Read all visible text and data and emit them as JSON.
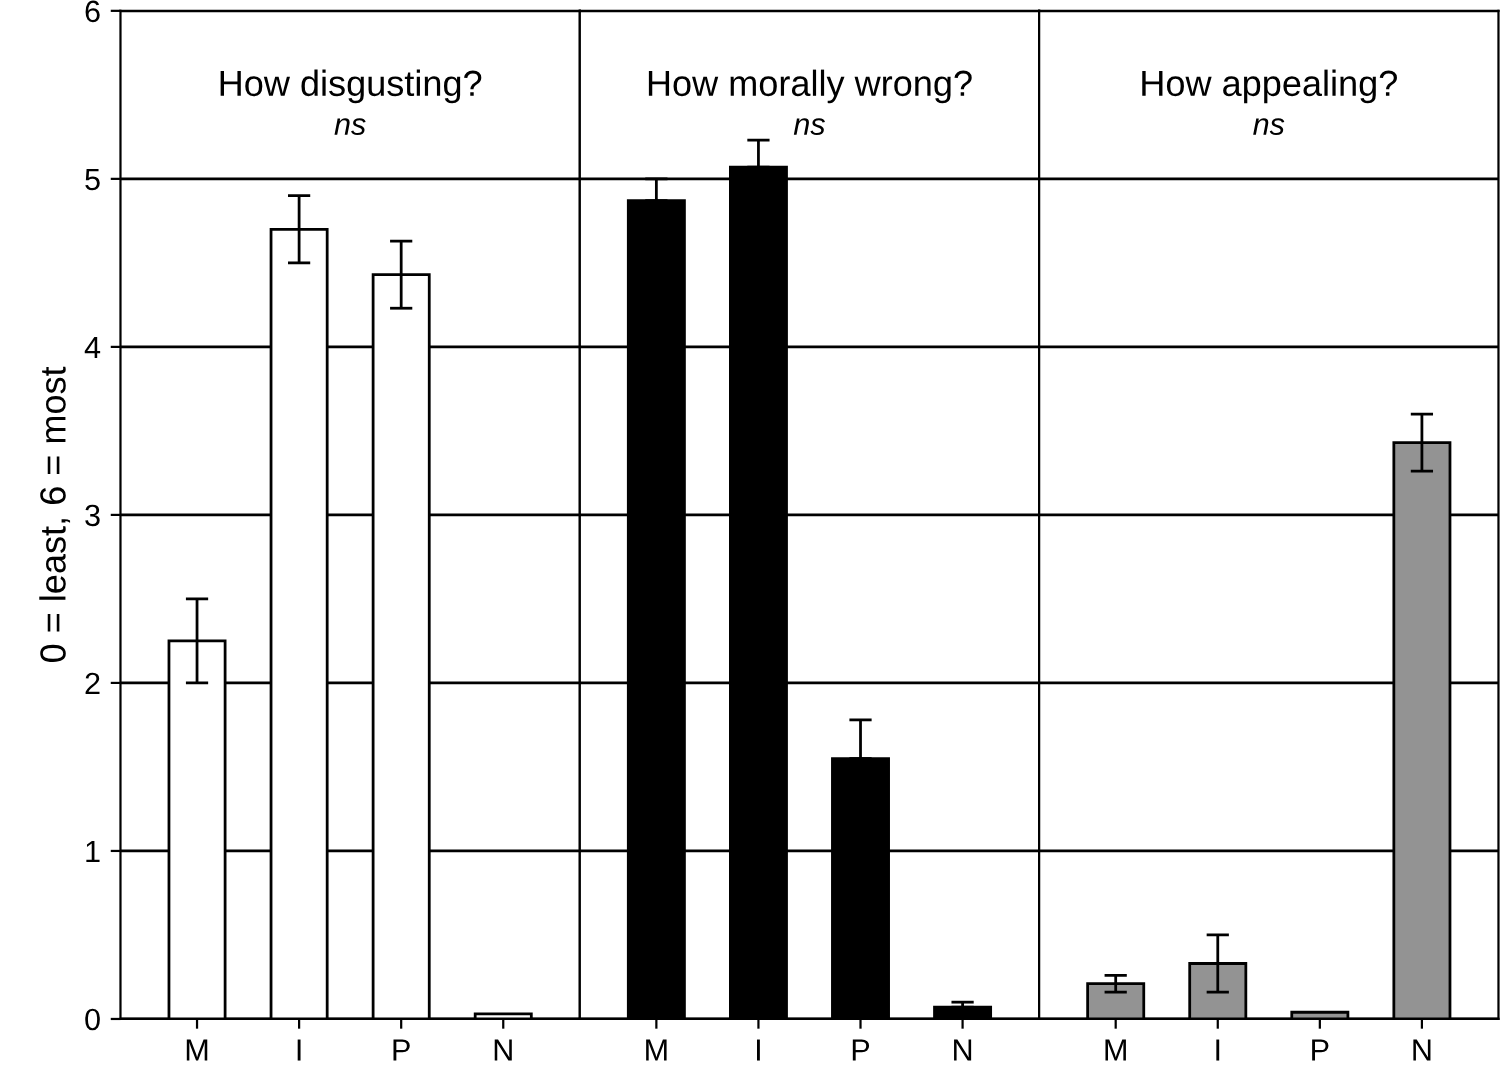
{
  "chart_data": [
    {
      "type": "bar",
      "title": "How disgusting?",
      "ylabel": "0 = least, 6 = most",
      "categories": [
        "M",
        "I",
        "P",
        "N"
      ],
      "ylim": [
        0,
        6
      ],
      "yticks": [
        0,
        1,
        2,
        3,
        4,
        5,
        6
      ],
      "grid": "y",
      "color": "#ffffff",
      "values": [
        2.25,
        4.7,
        4.43,
        0.03
      ],
      "errors": [
        0.25,
        0.2,
        0.2,
        null
      ],
      "annotations": [
        "ns"
      ]
    },
    {
      "type": "bar",
      "title": "How morally wrong?",
      "categories": [
        "M",
        "I",
        "P",
        "N"
      ],
      "ylim": [
        0,
        6
      ],
      "yticks": [
        0,
        1,
        2,
        3,
        4,
        5,
        6
      ],
      "tick_labels": "x",
      "grid": "y",
      "color": "#000000",
      "values": [
        4.87,
        5.07,
        1.55,
        0.07
      ],
      "errors": [
        [
          4.87,
          5.0
        ],
        [
          5.07,
          5.23
        ],
        [
          1.55,
          1.78
        ],
        [
          0.07,
          0.1
        ]
      ],
      "annotations": [
        "ns"
      ]
    },
    {
      "type": "bar",
      "title": "How appealing?",
      "categories": [
        "M",
        "I",
        "P",
        "N"
      ],
      "ylim": [
        0,
        6
      ],
      "yticks": [
        0,
        1,
        2,
        3,
        4,
        5,
        6
      ],
      "tick_labels": "x",
      "grid": "y",
      "color": "#939393",
      "values": [
        0.21,
        0.33,
        0.04,
        3.43
      ],
      "errors": [
        0.05,
        0.17,
        null,
        0.17
      ],
      "annotations": [
        "ns"
      ]
    }
  ]
}
